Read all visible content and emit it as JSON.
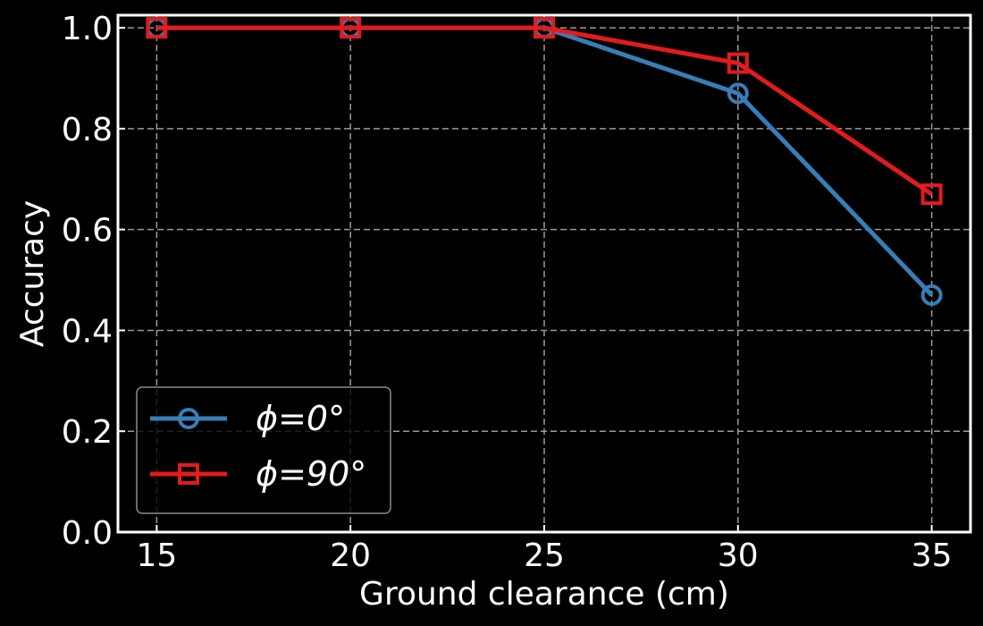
{
  "chart_data": {
    "type": "line",
    "title": "",
    "xlabel": "Ground clearance (cm)",
    "ylabel": "Accuracy",
    "x": [
      15,
      20,
      25,
      30,
      35
    ],
    "xlim": [
      14,
      36
    ],
    "ylim": [
      0,
      1.025
    ],
    "xticks": [
      "15",
      "20",
      "25",
      "30",
      "35"
    ],
    "yticks": [
      "0.0",
      "0.2",
      "0.4",
      "0.6",
      "0.8",
      "1.0"
    ],
    "grid": true,
    "legend_position": "lower-left",
    "series": [
      {
        "name": "ϕ=0°",
        "marker": "circle",
        "color": "#377eb8",
        "values": [
          1.0,
          1.0,
          1.0,
          0.87,
          0.47
        ]
      },
      {
        "name": "ϕ=90°",
        "marker": "square",
        "color": "#e41a1c",
        "values": [
          1.0,
          1.0,
          1.0,
          0.93,
          0.67
        ]
      }
    ]
  }
}
